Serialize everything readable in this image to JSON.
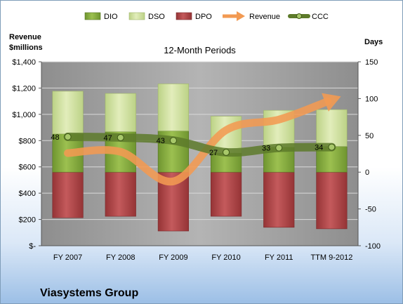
{
  "chart_data": {
    "type": "bar",
    "title": "12-Month Periods",
    "company": "Viasystems Group",
    "left_axis_label": [
      "Revenue",
      "$millions"
    ],
    "right_axis_label": "Days",
    "categories": [
      "FY 2007",
      "FY 2008",
      "FY 2009",
      "FY 2010",
      "FY 2011",
      "TTM 9-2012"
    ],
    "left_ticks": [
      "$-",
      "$200",
      "$400",
      "$600",
      "$800",
      "$1,000",
      "$1,200",
      "$1,400"
    ],
    "right_ticks": [
      "-100",
      "-50",
      "0",
      "50",
      "100",
      "150"
    ],
    "left_ylim": [
      0,
      1400
    ],
    "right_ylim": [
      -100,
      150
    ],
    "grid": true,
    "legend_position": "top",
    "legend": [
      "DIO",
      "DSO",
      "DPO",
      "Revenue",
      "CCC"
    ],
    "colors": {
      "DIO": "#84a83c",
      "DSO": "#cfe09c",
      "DPO": "#b0484a",
      "Revenue": "#f29a52",
      "CCC": "#5d7a2a",
      "plot_bg": "#a6a6a6"
    },
    "series": [
      {
        "name": "DIO",
        "axis": "days",
        "values": [
          52,
          55,
          56,
          26,
          34,
          35
        ]
      },
      {
        "name": "DSO",
        "axis": "days",
        "values": [
          58,
          52,
          64,
          50,
          50,
          50
        ]
      },
      {
        "name": "DPO",
        "axis": "days",
        "values": [
          -62,
          -60,
          -80,
          -60,
          -75,
          -77
        ]
      },
      {
        "name": "Revenue",
        "axis": "revenue",
        "values": [
          705,
          715,
          490,
          880,
          960,
          1110
        ]
      },
      {
        "name": "CCC",
        "axis": "days",
        "values": [
          48,
          47,
          43,
          27,
          33,
          34
        ]
      }
    ],
    "ccc_labels": [
      "48",
      "47",
      "43",
      "27",
      "33",
      "34"
    ]
  }
}
